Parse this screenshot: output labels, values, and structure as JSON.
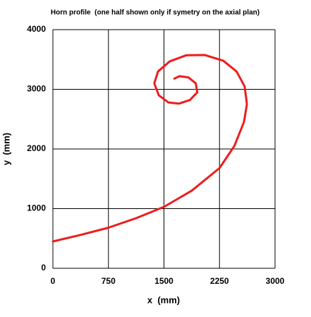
{
  "chart_data": {
    "type": "line",
    "title": "Horn profile  (one half shown only if symetry on the axial plan)",
    "x_label": "x  (mm)",
    "y_label": "y  (mm)",
    "x": [
      0,
      375,
      750,
      1125,
      1500,
      1875,
      2250,
      2450,
      2580,
      2620,
      2590,
      2480,
      2300,
      2050,
      1800,
      1580,
      1420,
      1370,
      1430,
      1560,
      1700,
      1850,
      1950,
      1930,
      1830,
      1710,
      1640
    ],
    "values": [
      450,
      560,
      680,
      840,
      1030,
      1300,
      1680,
      2050,
      2450,
      2750,
      3050,
      3300,
      3480,
      3575,
      3570,
      3470,
      3300,
      3100,
      2900,
      2780,
      2760,
      2820,
      2950,
      3100,
      3200,
      3220,
      3180
    ],
    "color": "#ee1c1c",
    "xlim": [
      0,
      3000
    ],
    "xticks": [
      0,
      750,
      1500,
      2250,
      3000
    ],
    "ylim": [
      0,
      4000
    ],
    "yticks": [
      0,
      1000,
      2000,
      3000,
      4000
    ],
    "grid": true
  }
}
